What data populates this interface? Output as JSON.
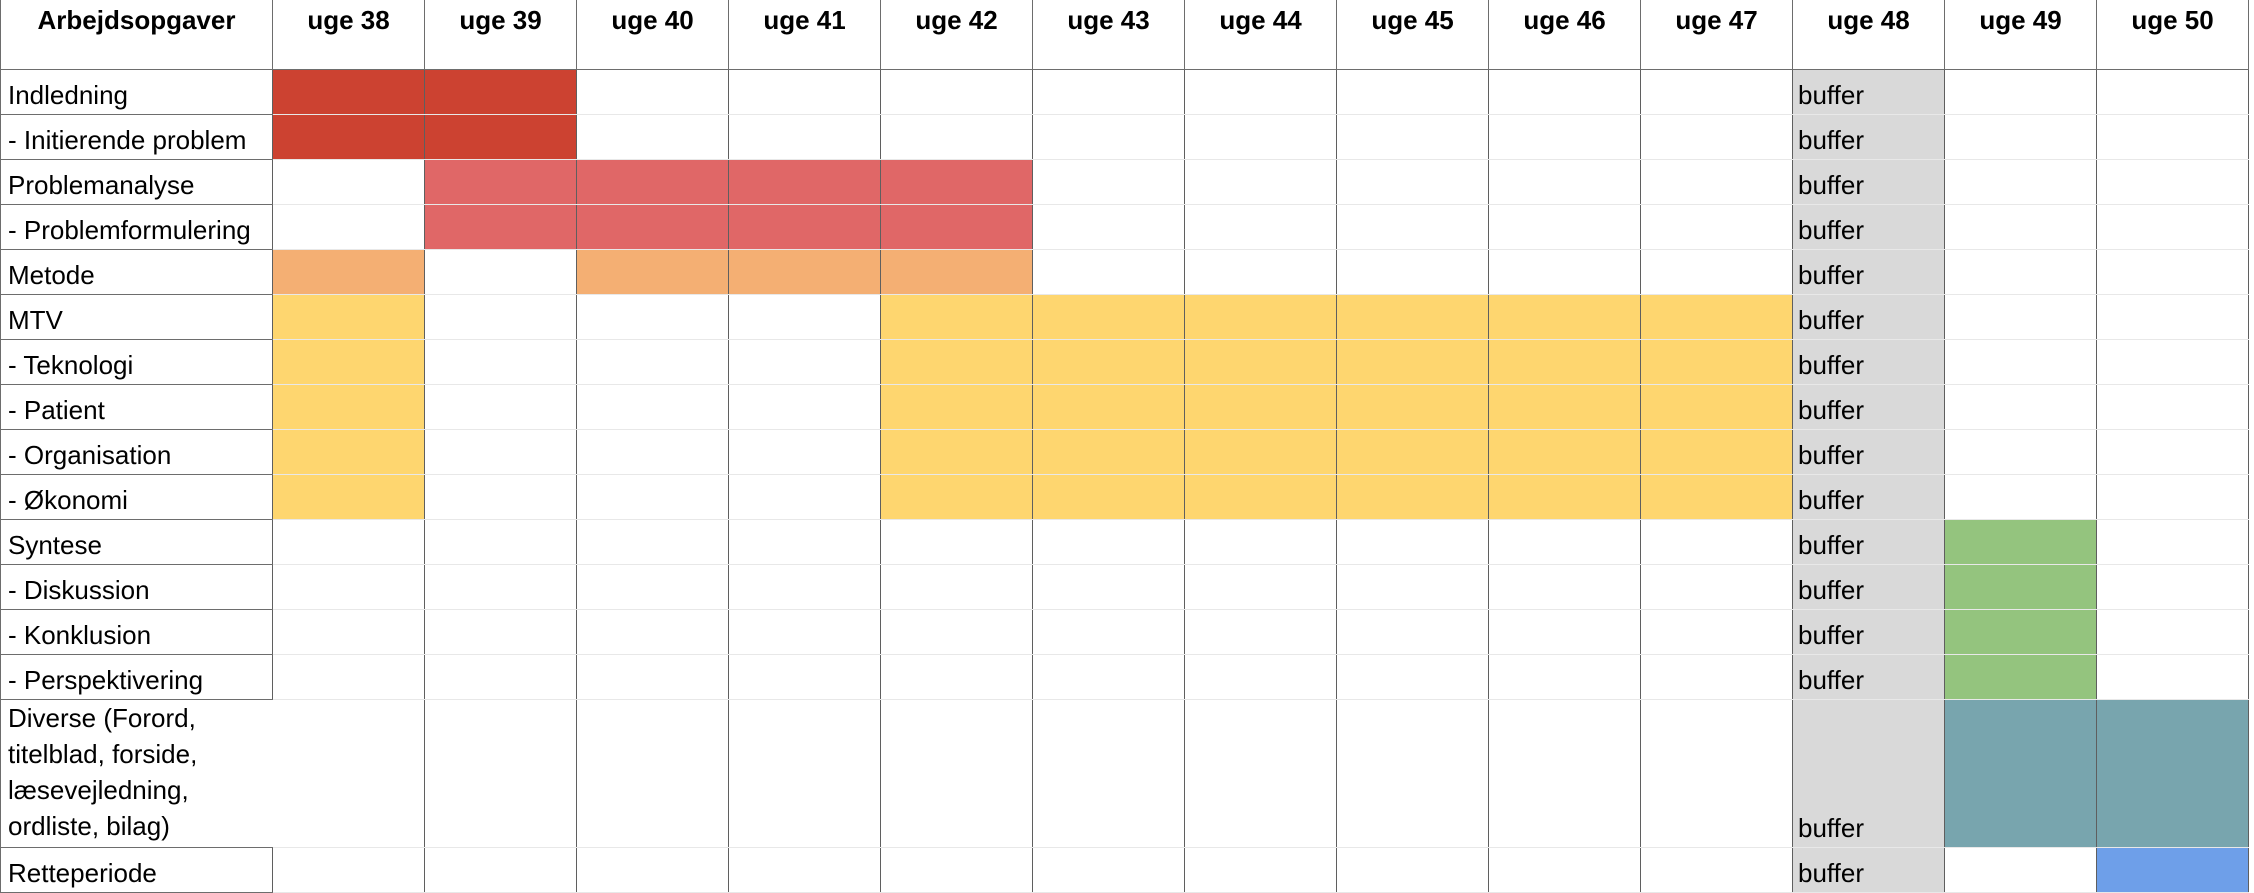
{
  "header": {
    "task_column": "Arbejdsopgaver",
    "weeks": [
      "uge 38",
      "uge 39",
      "uge 40",
      "uge 41",
      "uge 42",
      "uge 43",
      "uge 44",
      "uge 45",
      "uge 46",
      "uge 47",
      "uge 48",
      "uge 49",
      "uge 50"
    ]
  },
  "buffer_week_index": 10,
  "buffer_label": "buffer",
  "colors": {
    "red": "#cc4231",
    "salmon": "#e06767",
    "orange": "#f4af73",
    "yellow": "#fed66f",
    "green": "#94c47e",
    "teal": "#78a5ae",
    "blue": "#6e9fe9",
    "buffer_gray": "#d9d9d9",
    "grid_line": "#5f5f5f"
  },
  "rows": [
    {
      "task": "Indledning",
      "fills": {
        "0": "red",
        "1": "red"
      }
    },
    {
      "task": "- Initierende problem",
      "fills": {
        "0": "red",
        "1": "red"
      }
    },
    {
      "task": "Problemanalyse",
      "fills": {
        "1": "salmon",
        "2": "salmon",
        "3": "salmon",
        "4": "salmon"
      }
    },
    {
      "task": "- Problemformulering",
      "fills": {
        "1": "salmon",
        "2": "salmon",
        "3": "salmon",
        "4": "salmon"
      }
    },
    {
      "task": "Metode",
      "fills": {
        "0": "orange",
        "2": "orange",
        "3": "orange",
        "4": "orange"
      }
    },
    {
      "task": "MTV",
      "fills": {
        "0": "yellow",
        "4": "yellow",
        "5": "yellow",
        "6": "yellow",
        "7": "yellow",
        "8": "yellow",
        "9": "yellow"
      }
    },
    {
      "task": "- Teknologi",
      "fills": {
        "0": "yellow",
        "4": "yellow",
        "5": "yellow",
        "6": "yellow",
        "7": "yellow",
        "8": "yellow",
        "9": "yellow"
      }
    },
    {
      "task": "- Patient",
      "fills": {
        "0": "yellow",
        "4": "yellow",
        "5": "yellow",
        "6": "yellow",
        "7": "yellow",
        "8": "yellow",
        "9": "yellow"
      }
    },
    {
      "task": "- Organisation",
      "fills": {
        "0": "yellow",
        "4": "yellow",
        "5": "yellow",
        "6": "yellow",
        "7": "yellow",
        "8": "yellow",
        "9": "yellow"
      }
    },
    {
      "task": "- Økonomi",
      "fills": {
        "0": "yellow",
        "4": "yellow",
        "5": "yellow",
        "6": "yellow",
        "7": "yellow",
        "8": "yellow",
        "9": "yellow"
      }
    },
    {
      "task": "Syntese",
      "fills": {
        "11": "green"
      }
    },
    {
      "task": "- Diskussion",
      "fills": {
        "11": "green"
      }
    },
    {
      "task": "- Konklusion",
      "fills": {
        "11": "green"
      }
    },
    {
      "task": "- Perspektivering",
      "fills": {
        "11": "green"
      }
    },
    {
      "task": "Diverse (Forord, titelblad, forside, læsevejledning, ordliste, bilag)",
      "tall": true,
      "fills": {
        "11": "teal",
        "12": "teal"
      }
    },
    {
      "task": "Retteperiode",
      "fills": {
        "12": "blue"
      }
    }
  ]
}
